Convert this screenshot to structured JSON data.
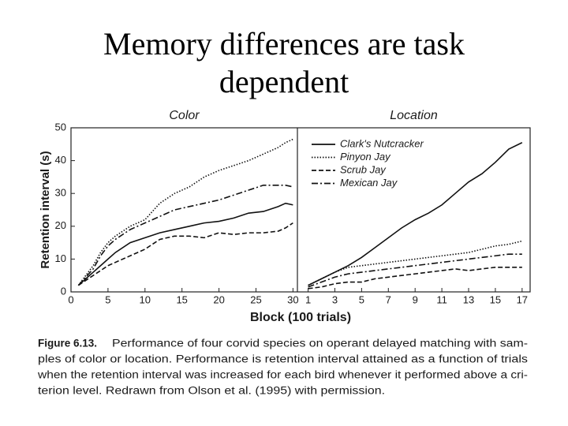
{
  "slide_title": [
    "Memory differences are task",
    "dependent"
  ],
  "chart_data": [
    {
      "type": "line",
      "title": "Color",
      "ylabel": "Retention interval (s)",
      "xlim": [
        0,
        30.6
      ],
      "ylim": [
        0,
        50
      ],
      "xticks": [
        0,
        5,
        10,
        15,
        20,
        25,
        30
      ],
      "yticks": [
        0,
        10,
        20,
        30,
        40,
        50
      ],
      "x": [
        1,
        2,
        3,
        4,
        5,
        6,
        8,
        10,
        12,
        14,
        16,
        18,
        20,
        22,
        24,
        26,
        28,
        29,
        30
      ],
      "series": [
        {
          "color": "#111111",
          "dash": "solid",
          "values": [
            2,
            4,
            6,
            8,
            10,
            12,
            15,
            16.5,
            18,
            19,
            20,
            21,
            21.5,
            22.5,
            24,
            24.5,
            26,
            27,
            26.5
          ]
        },
        {
          "color": "#111111",
          "dash": "dotted",
          "values": [
            2,
            5,
            8,
            12,
            15,
            17,
            20,
            22,
            27,
            30,
            32,
            35,
            37,
            38.5,
            40,
            42,
            44,
            45.5,
            46.5
          ]
        },
        {
          "color": "#111111",
          "dash": "dashed",
          "values": [
            2,
            3.5,
            5,
            6.5,
            8,
            9,
            11,
            13,
            16,
            17,
            17,
            16.5,
            18,
            17.5,
            18,
            18,
            18.5,
            19.5,
            21
          ]
        },
        {
          "color": "#111111",
          "dash": "dashdot",
          "values": [
            2,
            4.5,
            7,
            11,
            14,
            16,
            19,
            21,
            23,
            25,
            26,
            27,
            28,
            29.5,
            31,
            32.5,
            32.5,
            32.5,
            32
          ]
        }
      ]
    },
    {
      "type": "line",
      "title": "Location",
      "legend": "upper-left",
      "xlim": [
        0.2,
        17.6
      ],
      "ylim": [
        0,
        50
      ],
      "xticks": [
        1,
        3,
        5,
        7,
        9,
        11,
        13,
        15,
        17
      ],
      "x": [
        1,
        2,
        3,
        4,
        5,
        6,
        7,
        8,
        9,
        10,
        11,
        12,
        13,
        14,
        15,
        16,
        17
      ],
      "series": [
        {
          "name": "Clark's Nutcracker",
          "color": "#111111",
          "dash": "solid",
          "values": [
            2,
            4,
            6,
            8,
            10.5,
            13.5,
            16.5,
            19.5,
            22,
            24,
            26.5,
            30,
            33.5,
            36,
            39.5,
            43.5,
            45.5
          ]
        },
        {
          "name": "Pinyon Jay",
          "color": "#111111",
          "dash": "dotted",
          "values": [
            2,
            4,
            6,
            7.5,
            8,
            8.5,
            9,
            9.5,
            10,
            10.5,
            11,
            11.5,
            12,
            13,
            14,
            14.5,
            15.5
          ]
        },
        {
          "name": "Scrub Jay",
          "color": "#111111",
          "dash": "dashed",
          "values": [
            1,
            1.5,
            2.5,
            3,
            3,
            4,
            4.5,
            5,
            5.5,
            6,
            6.5,
            7,
            6.5,
            7,
            7.5,
            7.5,
            7.5
          ]
        },
        {
          "name": "Mexican Jay",
          "color": "#111111",
          "dash": "dashdot",
          "values": [
            1.5,
            3,
            4.5,
            5.5,
            6,
            6.5,
            7,
            7.5,
            8,
            8.5,
            9,
            9.5,
            10,
            10.5,
            11,
            11.5,
            11.5
          ]
        }
      ]
    }
  ],
  "xlabel": "Block (100 trials)",
  "caption": {
    "label": "Figure 6.13.",
    "lines": [
      "Performance of four corvid species on operant delayed matching with sam-",
      "ples of color or location. Performance is retention interval attained as a function of trials",
      "when the retention interval was increased for each bird whenever it performed above a cri-",
      "terion level. Redrawn from Olson et al. (1995) with permission."
    ]
  }
}
